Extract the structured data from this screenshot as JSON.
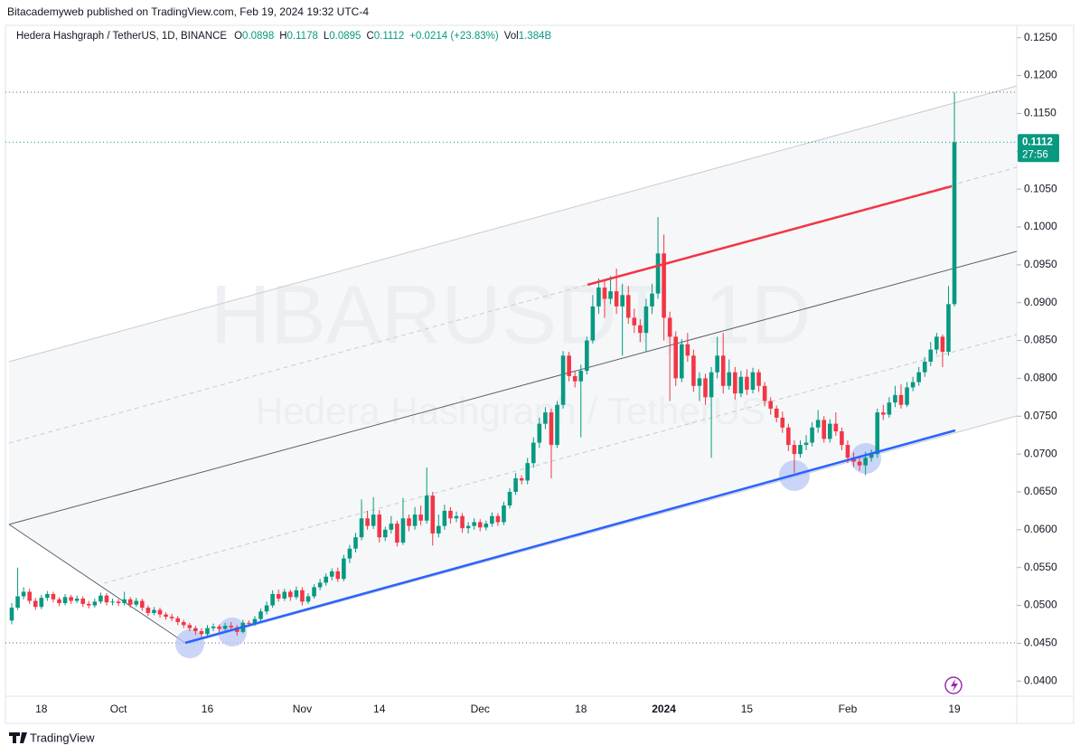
{
  "header": "Bitacademyweb published on TradingView.com, Feb 19, 2024 19:32 UTC-4",
  "footer": "TradingView",
  "chart_data": {
    "type": "candlestick",
    "title": "Hedera Hashgraph / TetherUS, 1D, BINANCE",
    "legend": [
      {
        "label": "O",
        "value": "0.0898"
      },
      {
        "label": "H",
        "value": "0.1178"
      },
      {
        "label": "L",
        "value": "0.0895"
      },
      {
        "label": "C",
        "value": "0.1112"
      },
      {
        "value": "+0.0214 (+23.83%)"
      },
      {
        "label": "Vol",
        "value": "1.384B"
      }
    ],
    "watermark": {
      "symbol": "HBARUSDT, 1D",
      "name": "Hedera Hashgraph / TetherUS"
    },
    "up_color": "#089981",
    "down_color": "#f23645",
    "grid": false,
    "ylim": [
      0.038,
      0.1264
    ],
    "yticks": [
      {
        "value": 0.04,
        "label": "0.0400"
      },
      {
        "value": 0.045,
        "label": "0.0450"
      },
      {
        "value": 0.05,
        "label": "0.0500"
      },
      {
        "value": 0.055,
        "label": "0.0550"
      },
      {
        "value": 0.06,
        "label": "0.0600"
      },
      {
        "value": 0.065,
        "label": "0.0650"
      },
      {
        "value": 0.07,
        "label": "0.0700"
      },
      {
        "value": 0.075,
        "label": "0.0750"
      },
      {
        "value": 0.08,
        "label": "0.0800"
      },
      {
        "value": 0.085,
        "label": "0.0850"
      },
      {
        "value": 0.09,
        "label": "0.0900"
      },
      {
        "value": 0.095,
        "label": "0.0950"
      },
      {
        "value": 0.1,
        "label": "0.1000"
      },
      {
        "value": 0.105,
        "label": "0.1050"
      },
      {
        "value": 0.11,
        "label": "0.1100"
      },
      {
        "value": 0.115,
        "label": "0.1150"
      },
      {
        "value": 0.12,
        "label": "0.1200"
      },
      {
        "value": 0.125,
        "label": "0.1250"
      }
    ],
    "price_tag": {
      "value": 0.1112,
      "label": "0.1112"
    },
    "countdown": "27:56",
    "categories": [
      null,
      null,
      null,
      null,
      null,
      "18",
      null,
      null,
      null,
      null,
      null,
      null,
      null,
      null,
      null,
      null,
      null,
      null,
      "Oct",
      null,
      null,
      null,
      null,
      null,
      null,
      null,
      null,
      null,
      null,
      null,
      null,
      null,
      null,
      "16",
      null,
      null,
      null,
      null,
      null,
      null,
      null,
      null,
      null,
      null,
      null,
      null,
      null,
      null,
      null,
      "Nov",
      null,
      null,
      null,
      null,
      null,
      null,
      null,
      null,
      null,
      null,
      null,
      null,
      "14",
      null,
      null,
      null,
      null,
      null,
      null,
      null,
      null,
      null,
      null,
      null,
      null,
      null,
      null,
      null,
      null,
      "Dec",
      null,
      null,
      null,
      null,
      null,
      null,
      null,
      null,
      null,
      null,
      null,
      null,
      null,
      null,
      null,
      null,
      "18",
      null,
      null,
      null,
      null,
      null,
      null,
      null,
      null,
      null,
      null,
      null,
      null,
      null,
      "2024",
      null,
      null,
      null,
      null,
      null,
      null,
      null,
      null,
      null,
      null,
      null,
      null,
      null,
      "15",
      null,
      null,
      null,
      null,
      null,
      null,
      null,
      null,
      null,
      null,
      null,
      null,
      null,
      null,
      null,
      null,
      "Feb",
      null,
      null,
      null,
      null,
      null,
      null,
      null,
      null,
      null,
      null,
      null,
      null,
      null,
      null,
      null,
      null,
      null,
      "19"
    ],
    "ohlc": [
      [
        0.048,
        0.0503,
        0.0475,
        0.0497
      ],
      [
        0.0497,
        0.055,
        0.0494,
        0.0512
      ],
      [
        0.0512,
        0.0524,
        0.0508,
        0.0518
      ],
      [
        0.0518,
        0.0522,
        0.0502,
        0.0506
      ],
      [
        0.0506,
        0.051,
        0.0494,
        0.0498
      ],
      [
        0.0498,
        0.0514,
        0.0495,
        0.051
      ],
      [
        0.051,
        0.0519,
        0.0506,
        0.0515
      ],
      [
        0.0515,
        0.0518,
        0.0504,
        0.0508
      ],
      [
        0.0508,
        0.0511,
        0.0499,
        0.0503
      ],
      [
        0.0503,
        0.0515,
        0.05,
        0.0511
      ],
      [
        0.0511,
        0.0514,
        0.0502,
        0.0506
      ],
      [
        0.0506,
        0.0513,
        0.0503,
        0.0509
      ],
      [
        0.0509,
        0.0512,
        0.0498,
        0.0502
      ],
      [
        0.0502,
        0.0506,
        0.0496,
        0.05
      ],
      [
        0.05,
        0.0509,
        0.0497,
        0.0505
      ],
      [
        0.0505,
        0.0517,
        0.0502,
        0.0513
      ],
      [
        0.0513,
        0.0516,
        0.05,
        0.0504
      ],
      [
        0.0504,
        0.0509,
        0.05,
        0.0505
      ],
      [
        0.0505,
        0.0508,
        0.0499,
        0.0503
      ],
      [
        0.0503,
        0.0518,
        0.05,
        0.0508
      ],
      [
        0.0508,
        0.0511,
        0.0497,
        0.0501
      ],
      [
        0.0501,
        0.051,
        0.0498,
        0.0506
      ],
      [
        0.0506,
        0.0509,
        0.0493,
        0.0497
      ],
      [
        0.0497,
        0.05,
        0.0486,
        0.049
      ],
      [
        0.049,
        0.0498,
        0.0487,
        0.0494
      ],
      [
        0.0494,
        0.0497,
        0.0484,
        0.0488
      ],
      [
        0.0488,
        0.0491,
        0.0481,
        0.0485
      ],
      [
        0.0485,
        0.0489,
        0.0479,
        0.0483
      ],
      [
        0.0483,
        0.0486,
        0.0474,
        0.0478
      ],
      [
        0.0478,
        0.0481,
        0.047,
        0.0474
      ],
      [
        0.0474,
        0.0477,
        0.0466,
        0.047
      ],
      [
        0.047,
        0.0473,
        0.0461,
        0.0466
      ],
      [
        0.0466,
        0.047,
        0.0457,
        0.0462
      ],
      [
        0.0462,
        0.0474,
        0.0459,
        0.047
      ],
      [
        0.047,
        0.0476,
        0.0466,
        0.0472
      ],
      [
        0.0472,
        0.0475,
        0.0465,
        0.0469
      ],
      [
        0.0469,
        0.0477,
        0.0466,
        0.0473
      ],
      [
        0.0473,
        0.0478,
        0.0467,
        0.0471
      ],
      [
        0.0471,
        0.0474,
        0.046,
        0.0465
      ],
      [
        0.0465,
        0.0481,
        0.0463,
        0.0477
      ],
      [
        0.0477,
        0.048,
        0.0472,
        0.0476
      ],
      [
        0.0476,
        0.0486,
        0.0473,
        0.0482
      ],
      [
        0.0482,
        0.0496,
        0.0479,
        0.0492
      ],
      [
        0.0492,
        0.0505,
        0.0488,
        0.05
      ],
      [
        0.05,
        0.052,
        0.0497,
        0.0515
      ],
      [
        0.0515,
        0.0521,
        0.0505,
        0.0509
      ],
      [
        0.0509,
        0.0522,
        0.0506,
        0.0518
      ],
      [
        0.0518,
        0.0521,
        0.0506,
        0.0511
      ],
      [
        0.0511,
        0.0525,
        0.0508,
        0.052
      ],
      [
        0.052,
        0.0524,
        0.05,
        0.0505
      ],
      [
        0.0505,
        0.0516,
        0.0502,
        0.0512
      ],
      [
        0.0512,
        0.0528,
        0.0509,
        0.0524
      ],
      [
        0.0524,
        0.0535,
        0.052,
        0.053
      ],
      [
        0.053,
        0.0542,
        0.0526,
        0.0538
      ],
      [
        0.0538,
        0.0549,
        0.0533,
        0.0545
      ],
      [
        0.0545,
        0.055,
        0.0531,
        0.0535
      ],
      [
        0.0535,
        0.0567,
        0.0532,
        0.0562
      ],
      [
        0.0562,
        0.058,
        0.0556,
        0.0575
      ],
      [
        0.0575,
        0.0596,
        0.057,
        0.059
      ],
      [
        0.059,
        0.064,
        0.0586,
        0.0615
      ],
      [
        0.0615,
        0.0625,
        0.06,
        0.0605
      ],
      [
        0.0605,
        0.0643,
        0.0601,
        0.062
      ],
      [
        0.062,
        0.0626,
        0.0583,
        0.059
      ],
      [
        0.059,
        0.0604,
        0.0585,
        0.06
      ],
      [
        0.06,
        0.0618,
        0.0595,
        0.0608
      ],
      [
        0.0608,
        0.0612,
        0.0578,
        0.0583
      ],
      [
        0.0583,
        0.0642,
        0.058,
        0.0615
      ],
      [
        0.0615,
        0.062,
        0.0598,
        0.0605
      ],
      [
        0.0605,
        0.063,
        0.06,
        0.062
      ],
      [
        0.062,
        0.0632,
        0.0606,
        0.0612
      ],
      [
        0.0612,
        0.0682,
        0.0608,
        0.0645
      ],
      [
        0.0645,
        0.065,
        0.0579,
        0.0595
      ],
      [
        0.0595,
        0.062,
        0.059,
        0.0605
      ],
      [
        0.0605,
        0.0633,
        0.06,
        0.0625
      ],
      [
        0.0625,
        0.063,
        0.0608,
        0.0615
      ],
      [
        0.0615,
        0.0624,
        0.061,
        0.0618
      ],
      [
        0.0618,
        0.0622,
        0.0596,
        0.0602
      ],
      [
        0.0602,
        0.061,
        0.0595,
        0.0605
      ],
      [
        0.0605,
        0.0615,
        0.06,
        0.061
      ],
      [
        0.061,
        0.0614,
        0.0598,
        0.0603
      ],
      [
        0.0603,
        0.0612,
        0.0599,
        0.0608
      ],
      [
        0.0608,
        0.0623,
        0.0604,
        0.0618
      ],
      [
        0.0618,
        0.0622,
        0.0605,
        0.061
      ],
      [
        0.061,
        0.0637,
        0.0606,
        0.0632
      ],
      [
        0.0632,
        0.0655,
        0.0628,
        0.065
      ],
      [
        0.065,
        0.0675,
        0.0646,
        0.0668
      ],
      [
        0.0668,
        0.0672,
        0.066,
        0.0665
      ],
      [
        0.0665,
        0.0695,
        0.066,
        0.0688
      ],
      [
        0.0688,
        0.0722,
        0.0682,
        0.0715
      ],
      [
        0.0715,
        0.0748,
        0.0708,
        0.074
      ],
      [
        0.074,
        0.0762,
        0.0733,
        0.0755
      ],
      [
        0.0755,
        0.076,
        0.0668,
        0.0712
      ],
      [
        0.0712,
        0.077,
        0.0708,
        0.0765
      ],
      [
        0.0765,
        0.0836,
        0.076,
        0.083
      ],
      [
        0.083,
        0.0835,
        0.0796,
        0.0803
      ],
      [
        0.0803,
        0.081,
        0.0788,
        0.0796
      ],
      [
        0.0796,
        0.0818,
        0.0722,
        0.081
      ],
      [
        0.081,
        0.0855,
        0.0805,
        0.085
      ],
      [
        0.085,
        0.091,
        0.0846,
        0.0895
      ],
      [
        0.0895,
        0.0932,
        0.0885,
        0.092
      ],
      [
        0.092,
        0.0928,
        0.088,
        0.0905
      ],
      [
        0.0905,
        0.0935,
        0.0898,
        0.0915
      ],
      [
        0.0915,
        0.0945,
        0.0885,
        0.0895
      ],
      [
        0.0895,
        0.0925,
        0.083,
        0.091
      ],
      [
        0.091,
        0.0922,
        0.0872,
        0.088
      ],
      [
        0.088,
        0.0892,
        0.086,
        0.087
      ],
      [
        0.087,
        0.0878,
        0.0848,
        0.086
      ],
      [
        0.086,
        0.0905,
        0.0835,
        0.0895
      ],
      [
        0.0895,
        0.0925,
        0.0885,
        0.0912
      ],
      [
        0.0912,
        0.1013,
        0.0905,
        0.0965
      ],
      [
        0.0965,
        0.099,
        0.085,
        0.088
      ],
      [
        0.088,
        0.0888,
        0.077,
        0.0855
      ],
      [
        0.0855,
        0.0862,
        0.079,
        0.08
      ],
      [
        0.08,
        0.0852,
        0.0795,
        0.0845
      ],
      [
        0.0845,
        0.086,
        0.0822,
        0.083
      ],
      [
        0.083,
        0.0838,
        0.0782,
        0.079
      ],
      [
        0.079,
        0.0808,
        0.077,
        0.08
      ],
      [
        0.08,
        0.0806,
        0.0765,
        0.0775
      ],
      [
        0.0775,
        0.0815,
        0.0695,
        0.0808
      ],
      [
        0.0808,
        0.0855,
        0.08,
        0.083
      ],
      [
        0.083,
        0.086,
        0.078,
        0.079
      ],
      [
        0.079,
        0.0825,
        0.0785,
        0.0808
      ],
      [
        0.0808,
        0.0815,
        0.0772,
        0.078
      ],
      [
        0.078,
        0.081,
        0.0775,
        0.0802
      ],
      [
        0.0802,
        0.0812,
        0.0778,
        0.0785
      ],
      [
        0.0785,
        0.0814,
        0.078,
        0.0808
      ],
      [
        0.0808,
        0.0812,
        0.0782,
        0.079
      ],
      [
        0.079,
        0.0795,
        0.0763,
        0.077
      ],
      [
        0.077,
        0.0775,
        0.0752,
        0.076
      ],
      [
        0.076,
        0.0764,
        0.0742,
        0.0748
      ],
      [
        0.0748,
        0.0756,
        0.0728,
        0.0735
      ],
      [
        0.0735,
        0.074,
        0.0704,
        0.0712
      ],
      [
        0.0712,
        0.0718,
        0.0675,
        0.07
      ],
      [
        0.07,
        0.0718,
        0.0695,
        0.0712
      ],
      [
        0.0712,
        0.0725,
        0.0705,
        0.0715
      ],
      [
        0.0715,
        0.0742,
        0.071,
        0.0735
      ],
      [
        0.0735,
        0.0758,
        0.0728,
        0.0745
      ],
      [
        0.0745,
        0.075,
        0.0715,
        0.072
      ],
      [
        0.072,
        0.0746,
        0.0715,
        0.074
      ],
      [
        0.074,
        0.0755,
        0.0724,
        0.073
      ],
      [
        0.073,
        0.0735,
        0.0705,
        0.0712
      ],
      [
        0.0712,
        0.0718,
        0.0688,
        0.0695
      ],
      [
        0.0695,
        0.0702,
        0.0683,
        0.069
      ],
      [
        0.069,
        0.0698,
        0.0678,
        0.0685
      ],
      [
        0.0685,
        0.0703,
        0.0672,
        0.0695
      ],
      [
        0.0695,
        0.0706,
        0.069,
        0.07
      ],
      [
        0.07,
        0.076,
        0.0695,
        0.0755
      ],
      [
        0.0755,
        0.0765,
        0.0745,
        0.0752
      ],
      [
        0.0752,
        0.0775,
        0.0748,
        0.0768
      ],
      [
        0.0768,
        0.079,
        0.0762,
        0.0778
      ],
      [
        0.0778,
        0.0792,
        0.076,
        0.0765
      ],
      [
        0.0765,
        0.0795,
        0.0762,
        0.0788
      ],
      [
        0.0788,
        0.0802,
        0.0783,
        0.0795
      ],
      [
        0.0795,
        0.0815,
        0.079,
        0.0808
      ],
      [
        0.0808,
        0.0828,
        0.0802,
        0.0822
      ],
      [
        0.0822,
        0.0848,
        0.0816,
        0.0838
      ],
      [
        0.0838,
        0.086,
        0.0832,
        0.0855
      ],
      [
        0.0855,
        0.0858,
        0.0815,
        0.0835
      ],
      [
        0.0835,
        0.0922,
        0.083,
        0.0898
      ],
      [
        0.0898,
        0.1178,
        0.0895,
        0.1112
      ]
    ]
  }
}
